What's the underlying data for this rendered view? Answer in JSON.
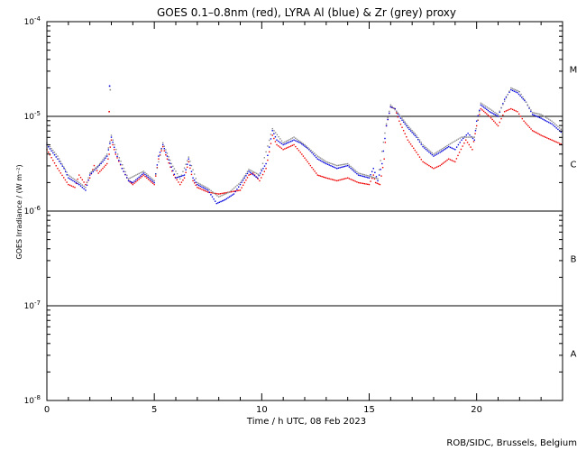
{
  "chart_data": {
    "type": "scatter",
    "title": "GOES 0.1–0.8nm (red), LYRA Al (blue) & Zr (grey) proxy",
    "xlabel": "Time / h UTC, 08 Feb 2023",
    "ylabel": "GOES Irradiance / (W m⁻²)",
    "credit": "ROB/SIDC, Brussels, Belgium",
    "xlim": [
      0,
      24
    ],
    "ylim_log10": [
      -8,
      -4
    ],
    "x_ticks": [
      {
        "value": 0,
        "label": "0"
      },
      {
        "value": 5,
        "label": "5"
      },
      {
        "value": 10,
        "label": "10"
      },
      {
        "value": 15,
        "label": "15"
      },
      {
        "value": 20,
        "label": "20"
      }
    ],
    "y_ticks": [
      {
        "value": -4,
        "base": "10",
        "exp": "-4"
      },
      {
        "value": -5,
        "base": "10",
        "exp": "-5"
      },
      {
        "value": -6,
        "base": "10",
        "exp": "-6"
      },
      {
        "value": -7,
        "base": "10",
        "exp": "-7"
      },
      {
        "value": -8,
        "base": "10",
        "exp": "-8"
      }
    ],
    "flare_classes": [
      {
        "label": "M",
        "center_log10": -4.5
      },
      {
        "label": "C",
        "center_log10": -5.5
      },
      {
        "label": "B",
        "center_log10": -6.5
      },
      {
        "label": "A",
        "center_log10": -7.5
      }
    ],
    "threshold_lines_log10": [
      -5,
      -6,
      -7
    ],
    "series": [
      {
        "name": "GOES 0.1-0.8nm",
        "color": "#ee0000",
        "points": [
          [
            0,
            -5.35
          ],
          [
            0.5,
            -5.55
          ],
          [
            1.0,
            -5.72
          ],
          [
            1.3,
            -5.75
          ],
          [
            1.5,
            -5.62
          ],
          [
            1.8,
            -5.72
          ],
          [
            2.0,
            -5.65
          ],
          [
            2.2,
            -5.52
          ],
          [
            2.4,
            -5.6
          ],
          [
            2.6,
            -5.55
          ],
          [
            2.8,
            -5.5
          ],
          [
            2.9,
            -5.4
          ],
          [
            3.0,
            -5.25
          ],
          [
            3.2,
            -5.4
          ],
          [
            3.5,
            -5.55
          ],
          [
            3.8,
            -5.68
          ],
          [
            4.0,
            -5.72
          ],
          [
            4.5,
            -5.62
          ],
          [
            4.8,
            -5.68
          ],
          [
            5.0,
            -5.72
          ],
          [
            5.2,
            -5.45
          ],
          [
            5.4,
            -5.32
          ],
          [
            5.6,
            -5.45
          ],
          [
            5.9,
            -5.62
          ],
          [
            6.2,
            -5.72
          ],
          [
            6.4,
            -5.65
          ],
          [
            6.6,
            -5.48
          ],
          [
            6.8,
            -5.68
          ],
          [
            7.0,
            -5.75
          ],
          [
            7.5,
            -5.8
          ],
          [
            8.0,
            -5.82
          ],
          [
            8.5,
            -5.8
          ],
          [
            9.0,
            -5.78
          ],
          [
            9.4,
            -5.62
          ],
          [
            9.6,
            -5.6
          ],
          [
            9.9,
            -5.68
          ],
          [
            10.2,
            -5.55
          ],
          [
            10.5,
            -5.2
          ],
          [
            10.7,
            -5.3
          ],
          [
            11.0,
            -5.35
          ],
          [
            11.5,
            -5.3
          ],
          [
            11.8,
            -5.38
          ],
          [
            12.2,
            -5.5
          ],
          [
            12.6,
            -5.62
          ],
          [
            13.0,
            -5.65
          ],
          [
            13.5,
            -5.68
          ],
          [
            14.0,
            -5.65
          ],
          [
            14.5,
            -5.7
          ],
          [
            15.0,
            -5.72
          ],
          [
            15.2,
            -5.62
          ],
          [
            15.3,
            -5.7
          ],
          [
            15.5,
            -5.72
          ],
          [
            15.7,
            -5.45
          ],
          [
            15.8,
            -5.1
          ],
          [
            16.0,
            -4.9
          ],
          [
            16.2,
            -4.92
          ],
          [
            16.4,
            -5.05
          ],
          [
            16.8,
            -5.25
          ],
          [
            17.2,
            -5.38
          ],
          [
            17.5,
            -5.48
          ],
          [
            18.0,
            -5.55
          ],
          [
            18.3,
            -5.52
          ],
          [
            18.7,
            -5.45
          ],
          [
            19.0,
            -5.48
          ],
          [
            19.2,
            -5.38
          ],
          [
            19.5,
            -5.25
          ],
          [
            19.8,
            -5.35
          ],
          [
            20.0,
            -5.1
          ],
          [
            20.2,
            -4.92
          ],
          [
            20.6,
            -5.0
          ],
          [
            21.0,
            -5.1
          ],
          [
            21.3,
            -4.95
          ],
          [
            21.6,
            -4.92
          ],
          [
            21.9,
            -4.95
          ],
          [
            22.2,
            -5.05
          ],
          [
            22.6,
            -5.15
          ],
          [
            23.0,
            -5.2
          ],
          [
            23.5,
            -5.25
          ],
          [
            24.0,
            -5.3
          ]
        ]
      },
      {
        "name": "LYRA Al proxy",
        "color": "#0000dd",
        "points": [
          [
            0,
            -5.3
          ],
          [
            0.5,
            -5.45
          ],
          [
            0.8,
            -5.55
          ],
          [
            1.0,
            -5.65
          ],
          [
            1.5,
            -5.72
          ],
          [
            1.8,
            -5.78
          ],
          [
            2.0,
            -5.62
          ],
          [
            2.3,
            -5.55
          ],
          [
            2.6,
            -5.48
          ],
          [
            2.8,
            -5.42
          ],
          [
            3.0,
            -5.22
          ],
          [
            3.2,
            -5.38
          ],
          [
            3.5,
            -5.55
          ],
          [
            3.8,
            -5.68
          ],
          [
            4.0,
            -5.7
          ],
          [
            4.5,
            -5.6
          ],
          [
            5.0,
            -5.7
          ],
          [
            5.2,
            -5.42
          ],
          [
            5.4,
            -5.3
          ],
          [
            5.6,
            -5.42
          ],
          [
            6.0,
            -5.65
          ],
          [
            6.4,
            -5.62
          ],
          [
            6.6,
            -5.45
          ],
          [
            6.8,
            -5.65
          ],
          [
            7.0,
            -5.72
          ],
          [
            7.5,
            -5.78
          ],
          [
            7.9,
            -5.92
          ],
          [
            8.3,
            -5.88
          ],
          [
            8.7,
            -5.82
          ],
          [
            9.0,
            -5.72
          ],
          [
            9.4,
            -5.58
          ],
          [
            9.8,
            -5.65
          ],
          [
            10.2,
            -5.5
          ],
          [
            10.5,
            -5.15
          ],
          [
            10.7,
            -5.25
          ],
          [
            11.0,
            -5.3
          ],
          [
            11.5,
            -5.25
          ],
          [
            11.8,
            -5.28
          ],
          [
            12.2,
            -5.35
          ],
          [
            12.6,
            -5.45
          ],
          [
            13.0,
            -5.5
          ],
          [
            13.5,
            -5.55
          ],
          [
            14.0,
            -5.52
          ],
          [
            14.5,
            -5.62
          ],
          [
            15.0,
            -5.65
          ],
          [
            15.2,
            -5.55
          ],
          [
            15.4,
            -5.68
          ],
          [
            15.6,
            -5.5
          ],
          [
            15.8,
            -5.1
          ],
          [
            16.0,
            -4.9
          ],
          [
            16.2,
            -4.92
          ],
          [
            16.4,
            -5.0
          ],
          [
            16.8,
            -5.12
          ],
          [
            17.2,
            -5.22
          ],
          [
            17.5,
            -5.32
          ],
          [
            18.0,
            -5.42
          ],
          [
            18.3,
            -5.38
          ],
          [
            18.7,
            -5.32
          ],
          [
            19.0,
            -5.35
          ],
          [
            19.3,
            -5.25
          ],
          [
            19.6,
            -5.18
          ],
          [
            19.9,
            -5.25
          ],
          [
            20.0,
            -5.05
          ],
          [
            20.2,
            -4.88
          ],
          [
            20.6,
            -4.95
          ],
          [
            21.0,
            -5.0
          ],
          [
            21.3,
            -4.82
          ],
          [
            21.6,
            -4.72
          ],
          [
            21.9,
            -4.75
          ],
          [
            22.3,
            -4.85
          ],
          [
            22.6,
            -4.98
          ],
          [
            23.0,
            -5.02
          ],
          [
            23.5,
            -5.08
          ],
          [
            24.0,
            -5.18
          ]
        ]
      },
      {
        "name": "LYRA Zr proxy",
        "color": "#888888",
        "points": [
          [
            0,
            -5.28
          ],
          [
            0.5,
            -5.42
          ],
          [
            1.0,
            -5.62
          ],
          [
            1.5,
            -5.7
          ],
          [
            1.8,
            -5.75
          ],
          [
            2.0,
            -5.6
          ],
          [
            2.4,
            -5.52
          ],
          [
            2.8,
            -5.4
          ],
          [
            3.0,
            -5.2
          ],
          [
            3.3,
            -5.4
          ],
          [
            3.8,
            -5.66
          ],
          [
            4.5,
            -5.58
          ],
          [
            5.0,
            -5.68
          ],
          [
            5.4,
            -5.28
          ],
          [
            5.8,
            -5.5
          ],
          [
            6.2,
            -5.66
          ],
          [
            6.6,
            -5.43
          ],
          [
            7.0,
            -5.7
          ],
          [
            7.5,
            -5.76
          ],
          [
            8.0,
            -5.85
          ],
          [
            8.5,
            -5.8
          ],
          [
            9.0,
            -5.7
          ],
          [
            9.4,
            -5.56
          ],
          [
            9.9,
            -5.62
          ],
          [
            10.5,
            -5.13
          ],
          [
            11.0,
            -5.28
          ],
          [
            11.5,
            -5.22
          ],
          [
            12.0,
            -5.3
          ],
          [
            12.6,
            -5.42
          ],
          [
            13.0,
            -5.48
          ],
          [
            13.5,
            -5.52
          ],
          [
            14.0,
            -5.5
          ],
          [
            14.5,
            -5.6
          ],
          [
            15.0,
            -5.63
          ],
          [
            15.4,
            -5.66
          ],
          [
            15.8,
            -5.08
          ],
          [
            16.0,
            -4.88
          ],
          [
            16.4,
            -4.98
          ],
          [
            16.8,
            -5.1
          ],
          [
            17.2,
            -5.2
          ],
          [
            17.5,
            -5.3
          ],
          [
            18.0,
            -5.4
          ],
          [
            18.7,
            -5.3
          ],
          [
            19.3,
            -5.22
          ],
          [
            19.9,
            -5.22
          ],
          [
            20.2,
            -4.86
          ],
          [
            21.0,
            -4.98
          ],
          [
            21.6,
            -4.7
          ],
          [
            22.0,
            -4.74
          ],
          [
            22.6,
            -4.96
          ],
          [
            23.0,
            -4.98
          ],
          [
            23.5,
            -5.05
          ],
          [
            24.0,
            -5.15
          ]
        ]
      }
    ],
    "isolated_points": [
      {
        "series": "LYRA Al proxy",
        "color": "#0000dd",
        "x": 2.92,
        "y": -4.68
      },
      {
        "series": "LYRA Zr proxy",
        "color": "#888888",
        "x": 2.95,
        "y": -4.72
      },
      {
        "series": "GOES 0.1-0.8nm",
        "color": "#ee0000",
        "x": 2.9,
        "y": -4.95
      }
    ]
  }
}
